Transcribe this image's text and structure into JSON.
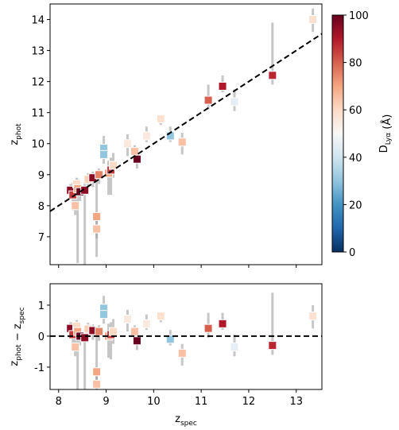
{
  "chart_data": [
    {
      "type": "scatter",
      "ylabel": [
        {
          "text": "z",
          "sub": "phot"
        }
      ],
      "x": [
        8.25,
        8.3,
        8.35,
        8.38,
        8.4,
        8.45,
        8.55,
        8.62,
        8.72,
        8.8,
        8.8,
        8.85,
        8.95,
        8.95,
        9.05,
        9.1,
        9.15,
        9.45,
        9.6,
        9.65,
        9.85,
        10.15,
        10.35,
        10.6,
        11.15,
        11.45,
        11.7,
        12.5,
        13.35
      ],
      "y": [
        8.5,
        8.35,
        8.0,
        8.7,
        8.55,
        8.45,
        8.5,
        8.85,
        8.9,
        7.65,
        7.25,
        9.0,
        9.85,
        9.65,
        9.05,
        9.15,
        9.3,
        10.0,
        9.75,
        9.5,
        10.25,
        10.8,
        10.25,
        10.05,
        11.4,
        11.85,
        11.35,
        12.2,
        14.0
      ],
      "yerr_low": [
        0.3,
        0.5,
        0.3,
        0.3,
        2.4,
        0.3,
        2.4,
        0.3,
        0.3,
        1.3,
        0.3,
        0.3,
        0.2,
        0.3,
        0.7,
        0.8,
        0.4,
        0.4,
        0.3,
        0.3,
        0.2,
        0.2,
        0.2,
        0.4,
        0.3,
        0.2,
        0.3,
        0.3,
        0.4
      ],
      "yerr_high": [
        0.2,
        0.4,
        0.8,
        0.2,
        0.3,
        0.3,
        0.3,
        0.2,
        0.2,
        1.2,
        0.3,
        0.2,
        0.4,
        0.2,
        0.4,
        0.4,
        0.4,
        0.3,
        0.2,
        0.3,
        0.3,
        0.1,
        0.3,
        0.3,
        0.5,
        0.35,
        0.4,
        1.7,
        0.35
      ],
      "color_values": [
        95,
        85,
        65,
        60,
        70,
        100,
        95,
        62,
        95,
        70,
        65,
        75,
        30,
        30,
        70,
        85,
        60,
        55,
        65,
        100,
        55,
        58,
        30,
        65,
        80,
        90,
        45,
        88,
        58
      ],
      "xlim": [
        7.82,
        13.54
      ],
      "ylim": [
        6.1,
        14.5
      ],
      "yticks": [
        7,
        8,
        9,
        10,
        11,
        12,
        13,
        14
      ],
      "colorbar": {
        "label": [
          {
            "text": "D",
            "sub": "Lyα"
          },
          {
            "text": " (Å)"
          }
        ],
        "lim": [
          0,
          100
        ],
        "ticks": [
          0,
          20,
          40,
          60,
          80,
          100
        ],
        "colormap": [
          "#053061",
          "#2166ac",
          "#4393c3",
          "#92c5de",
          "#d1e5f0",
          "#f7f7f7",
          "#fddbc7",
          "#f4a582",
          "#d6604d",
          "#b2182b",
          "#67001f"
        ]
      },
      "error_color": "#a0a0a0",
      "line_color": "#000000"
    },
    {
      "type": "residual",
      "xlabel": [
        {
          "text": "z",
          "sub": "spec"
        }
      ],
      "ylabel": [
        {
          "text": "z",
          "sub": "phot"
        },
        {
          "text": " − z",
          "sub": "spec"
        }
      ],
      "y": [
        0.25,
        0.05,
        -0.35,
        0.32,
        0.15,
        0.0,
        -0.05,
        0.23,
        0.18,
        -1.15,
        -1.55,
        0.15,
        0.9,
        0.7,
        0.0,
        0.05,
        0.15,
        0.55,
        0.15,
        -0.15,
        0.4,
        0.65,
        -0.1,
        -0.55,
        0.25,
        0.4,
        -0.35,
        -0.3,
        0.65
      ],
      "xlim": [
        7.82,
        13.54
      ],
      "ylim": [
        -1.72,
        1.69
      ],
      "xticks": [
        8,
        9,
        10,
        11,
        12,
        13
      ],
      "yticks": [
        -1,
        0,
        1
      ]
    }
  ]
}
